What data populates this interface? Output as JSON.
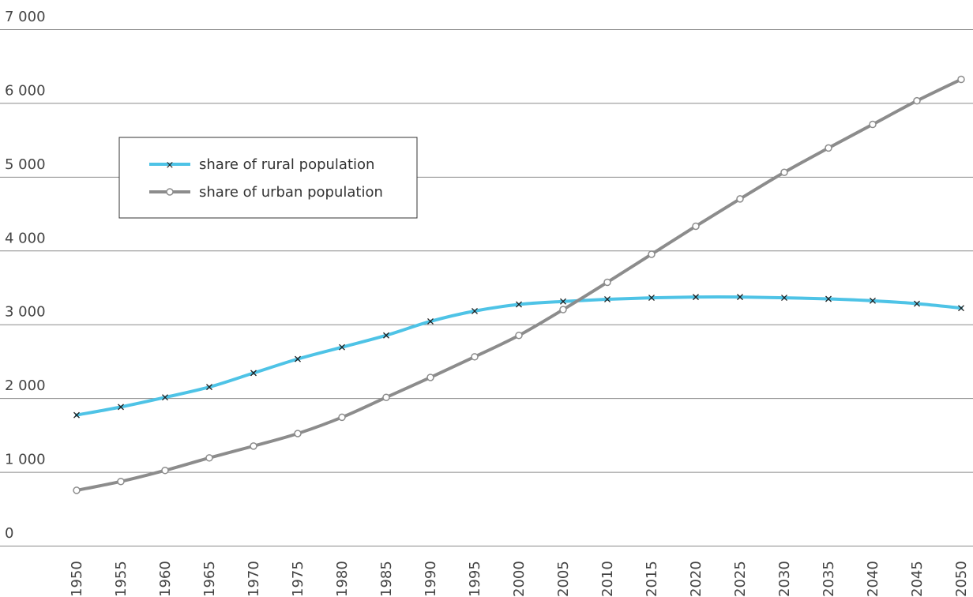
{
  "chart_data": {
    "type": "line",
    "x": [
      1950,
      1955,
      1960,
      1965,
      1970,
      1975,
      1980,
      1985,
      1990,
      1995,
      2000,
      2005,
      2010,
      2015,
      2020,
      2025,
      2030,
      2035,
      2040,
      2045,
      2050
    ],
    "x_tick_labels": [
      "1950",
      "1955",
      "1960",
      "1965",
      "1970",
      "1975",
      "1980",
      "1985",
      "1990",
      "1995",
      "2000",
      "2005",
      "2010",
      "2015",
      "2020",
      "2025",
      "2030",
      "2035",
      "2040",
      "2045",
      "2050"
    ],
    "y_tick_labels": [
      "0",
      "1 000",
      "2 000",
      "3 000",
      "4 000",
      "5 000",
      "6 000",
      "7 000"
    ],
    "y_ticks": [
      0,
      1000,
      2000,
      3000,
      4000,
      5000,
      6000,
      7000
    ],
    "ylim": [
      0,
      7000
    ],
    "grid": true,
    "legend_position": "upper-left",
    "series": [
      {
        "name": "share of rural population",
        "color": "#4ec3e6",
        "marker": "x",
        "values": [
          1770,
          1880,
          2010,
          2150,
          2340,
          2530,
          2690,
          2850,
          3040,
          3180,
          3270,
          3310,
          3340,
          3360,
          3370,
          3370,
          3360,
          3345,
          3320,
          3280,
          3220
        ]
      },
      {
        "name": "share of urban population",
        "color": "#8c8c8c",
        "marker": "circle",
        "values": [
          750,
          870,
          1020,
          1190,
          1350,
          1520,
          1740,
          2010,
          2280,
          2560,
          2850,
          3200,
          3570,
          3950,
          4330,
          4700,
          5060,
          5390,
          5710,
          6030,
          6320
        ]
      }
    ]
  }
}
